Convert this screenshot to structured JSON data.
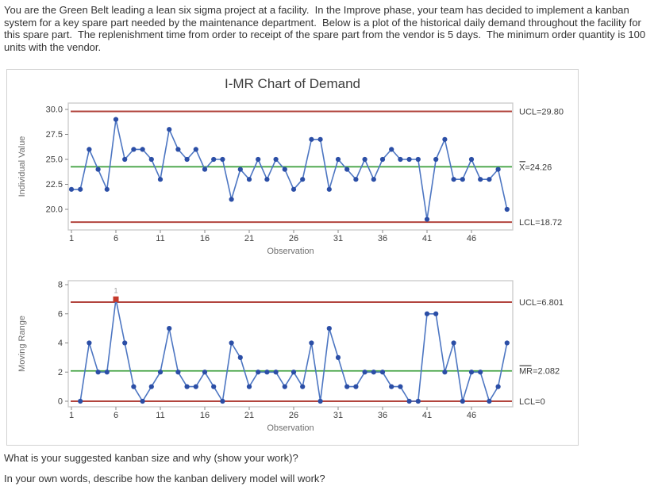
{
  "intro": {
    "text": "You are the Green Belt leading a lean six sigma project at a facility.  In the Improve phase, your team has decided to implement a kanban system for a key spare part needed by the maintenance department.  Below is a plot of the historical daily demand throughout the facility for this spare part.  The replenishment time from order to receipt of the spare part from the vendor is 5 days.  The minimum order quantity is 100 units with the vendor."
  },
  "questions": {
    "kanban_size": "What is your suggested kanban size and why (show your work)?",
    "delivery_model": "In your own words, describe how the kanban delivery model will work?"
  },
  "chart_data": {
    "type": "line",
    "title": "I-MR Chart of Demand",
    "xlabel": "Observation",
    "x_ticks": [
      1,
      6,
      11,
      16,
      21,
      26,
      31,
      36,
      41,
      46
    ],
    "n_observations": 50,
    "grid": false,
    "panels": [
      {
        "name": "individuals",
        "ylabel": "Individual Value",
        "y_ticks": [
          "30.0",
          "27.5",
          "25.0",
          "22.5",
          "20.0"
        ],
        "ylim": [
          19.3,
          30.5
        ],
        "start_obs": 1,
        "ucl": 29.8,
        "center": 24.26,
        "lcl": 18.72,
        "ucl_label": "UCL=29.80",
        "center_label": "X=24.26",
        "center_bar": true,
        "lcl_label": "LCL=18.72",
        "values": [
          22,
          22,
          26,
          24,
          22,
          29,
          25,
          26,
          26,
          25,
          23,
          28,
          26,
          25,
          26,
          24,
          25,
          25,
          21,
          24,
          23,
          25,
          23,
          25,
          24,
          22,
          23,
          27,
          27,
          22,
          25,
          24,
          23,
          25,
          23,
          25,
          26,
          25,
          25,
          25,
          19,
          25,
          27,
          23,
          23,
          25,
          23,
          23,
          24,
          20
        ],
        "out_of_control": []
      },
      {
        "name": "moving-range",
        "ylabel": "Moving Range",
        "y_ticks": [
          "8",
          "6",
          "4",
          "2",
          "0"
        ],
        "ylim": [
          -0.4,
          8.2
        ],
        "start_obs": 2,
        "ucl": 6.801,
        "center": 2.082,
        "lcl": 0,
        "ucl_label": "UCL=6.801",
        "center_label": "MR=2.082",
        "center_bar": true,
        "lcl_label": "LCL=0",
        "values": [
          0,
          4,
          2,
          2,
          7,
          4,
          1,
          0,
          1,
          2,
          5,
          2,
          1,
          1,
          2,
          1,
          0,
          4,
          3,
          1,
          2,
          2,
          2,
          1,
          2,
          1,
          4,
          0,
          5,
          3,
          1,
          1,
          2,
          2,
          2,
          1,
          1,
          0,
          0,
          6,
          6,
          2,
          4,
          0,
          2,
          2,
          0,
          1,
          4
        ],
        "out_of_control": [
          {
            "obs": 6,
            "value": 7,
            "label": "1"
          }
        ]
      }
    ],
    "colors": {
      "series_line": "#4d76c2",
      "marker": "#2b4ea6",
      "center_line": "#47a447",
      "limit_line": "#b2453e",
      "ooc_marker": "#c5392b",
      "ooc_label": "#999999",
      "tick_text": "#3f3f3f",
      "axis_title_text": "#6e6e6e",
      "stat_label_text": "#3b3b3b"
    }
  }
}
